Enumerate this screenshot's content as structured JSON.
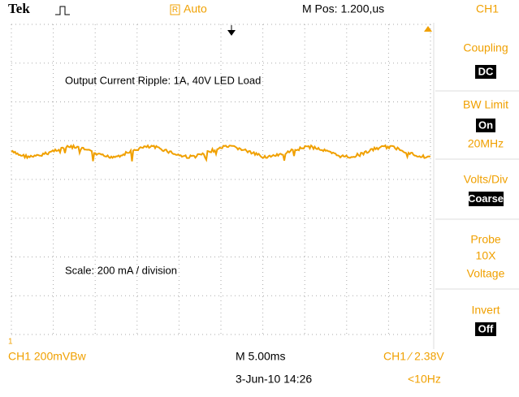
{
  "header": {
    "brand": "Tek",
    "trigger_icon": "R",
    "trigger_mode": "Auto",
    "m_pos": "M Pos: 1.200,us",
    "channel": "CH1"
  },
  "screen": {
    "annotations": [
      "Output Current Ripple: 1A, 40V LED Load",
      "Scale: 200 mA / division"
    ],
    "ch_marker": "1"
  },
  "menu": [
    {
      "label": "Coupling",
      "value": "DC"
    },
    {
      "label": "BW Limit",
      "value": "On",
      "note": [
        "20MHz"
      ]
    },
    {
      "label": "Volts/Div",
      "value": "Coarse"
    },
    {
      "label": "Probe",
      "note": [
        "10X",
        "Voltage"
      ]
    },
    {
      "label": "Invert",
      "value": "Off"
    }
  ],
  "status": {
    "ch_scale": "CH1  200mVBw",
    "timebase": "M 5.00ms",
    "trigger": "CH1 ∕ 2.38V",
    "date": "3-Jun-10 14:26",
    "frequency": "<10Hz"
  }
}
